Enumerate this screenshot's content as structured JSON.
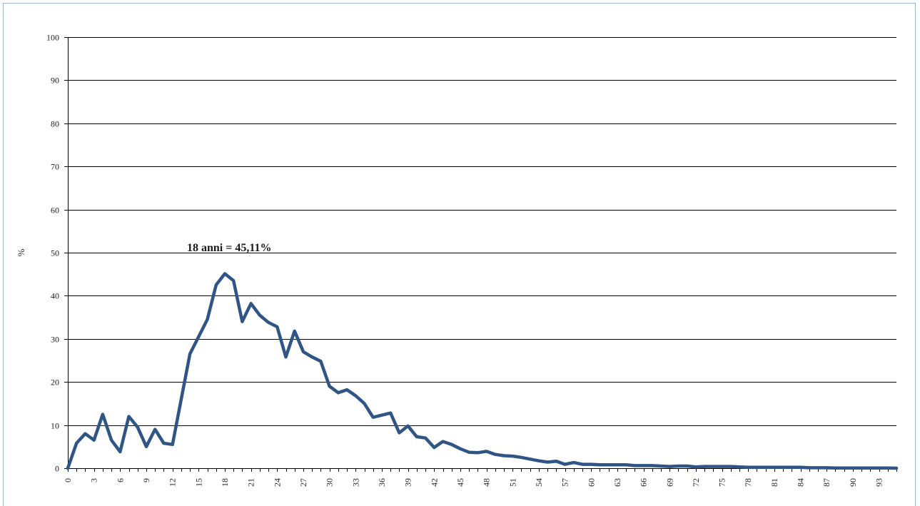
{
  "chart_data": {
    "type": "line",
    "title": "",
    "xlabel": "",
    "ylabel": "%",
    "ylim": [
      0,
      100
    ],
    "yticks": [
      0,
      10,
      20,
      30,
      40,
      50,
      60,
      70,
      80,
      90,
      100
    ],
    "xlim": [
      0,
      95
    ],
    "xtick_labels": [
      0,
      3,
      6,
      9,
      12,
      15,
      18,
      21,
      24,
      27,
      30,
      33,
      36,
      39,
      42,
      45,
      48,
      51,
      54,
      57,
      60,
      63,
      66,
      69,
      72,
      75,
      78,
      81,
      84,
      87,
      90,
      93
    ],
    "grid": true,
    "legend": "none",
    "line_color": "#2f5586",
    "annotation": {
      "text": "18 anni = 45,11%",
      "x": 18,
      "y": 45.11
    },
    "x": [
      0,
      1,
      2,
      3,
      4,
      5,
      6,
      7,
      8,
      9,
      10,
      11,
      12,
      13,
      14,
      15,
      16,
      17,
      18,
      19,
      20,
      21,
      22,
      23,
      24,
      25,
      26,
      27,
      28,
      29,
      30,
      31,
      32,
      33,
      34,
      35,
      36,
      37,
      38,
      39,
      40,
      41,
      42,
      43,
      44,
      45,
      46,
      47,
      48,
      49,
      50,
      51,
      52,
      53,
      54,
      55,
      56,
      57,
      58,
      59,
      60,
      61,
      62,
      63,
      64,
      65,
      66,
      67,
      68,
      69,
      70,
      71,
      72,
      73,
      74,
      75,
      76,
      77,
      78,
      79,
      80,
      81,
      82,
      83,
      84,
      85,
      86,
      87,
      88,
      89,
      90,
      91,
      92,
      93,
      94,
      95
    ],
    "values": [
      0,
      5.8,
      8,
      6.5,
      12.5,
      6.5,
      3.8,
      12,
      9.5,
      5,
      9,
      5.8,
      5.5,
      16,
      26.5,
      30.5,
      34.5,
      42.5,
      45.11,
      43.5,
      34,
      38.2,
      35.5,
      33.8,
      32.8,
      25.8,
      31.8,
      27,
      25.8,
      24.8,
      19,
      17.5,
      18.2,
      16.8,
      15,
      11.8,
      12.3,
      12.8,
      8.2,
      9.8,
      7.3,
      7,
      4.8,
      6.2,
      5.5,
      4.5,
      3.7,
      3.6,
      3.9,
      3.2,
      2.9,
      2.8,
      2.5,
      2.1,
      1.7,
      1.4,
      1.6,
      0.9,
      1.3,
      0.9,
      0.9,
      0.8,
      0.8,
      0.8,
      0.8,
      0.6,
      0.6,
      0.6,
      0.5,
      0.4,
      0.5,
      0.5,
      0.3,
      0.4,
      0.4,
      0.4,
      0.4,
      0.3,
      0.2,
      0.2,
      0.2,
      0.2,
      0.2,
      0.2,
      0.2,
      0.1,
      0.1,
      0.1,
      0.05,
      0.05,
      0.05,
      0.05,
      0.05,
      0.05,
      0.05,
      0
    ]
  }
}
